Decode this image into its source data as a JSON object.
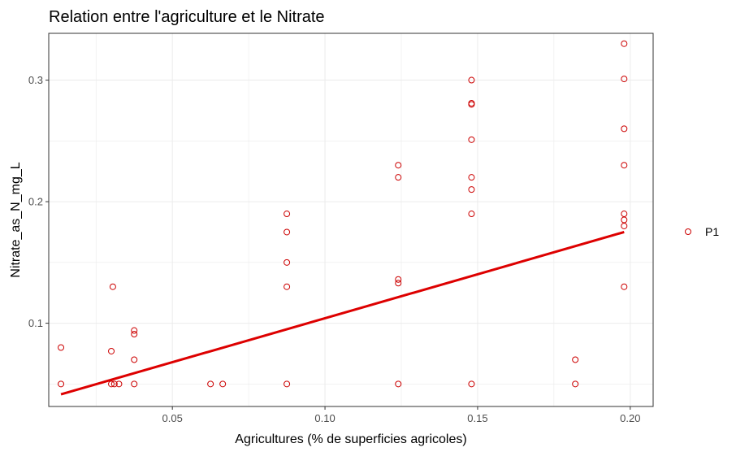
{
  "chart_data": {
    "type": "scatter",
    "title": "Relation entre l'agriculture et le Nitrate",
    "xlabel": "Agricultures (% de superficies agricoles)",
    "ylabel": "Nitrate_as_N_mg_L",
    "xlim": [
      0.0095,
      0.2075
    ],
    "ylim": [
      0.0315,
      0.3385
    ],
    "xticks": [
      0.05,
      0.1,
      0.15,
      0.2
    ],
    "xtick_labels": [
      "0.05",
      "0.10",
      "0.15",
      "0.20"
    ],
    "yticks": [
      0.1,
      0.2,
      0.3
    ],
    "ytick_labels": [
      "0.1",
      "0.2",
      "0.3"
    ],
    "grid": true,
    "legend": {
      "position": "right",
      "entries": [
        "P1"
      ]
    },
    "colors": {
      "points": "#cc0000",
      "trend": "#dd0000",
      "grid": "#ebebeb",
      "border": "#333333"
    },
    "series": [
      {
        "name": "P1",
        "points": [
          [
            0.0135,
            0.08
          ],
          [
            0.0135,
            0.05
          ],
          [
            0.03,
            0.077
          ],
          [
            0.0305,
            0.13
          ],
          [
            0.03,
            0.05
          ],
          [
            0.031,
            0.05
          ],
          [
            0.0325,
            0.05
          ],
          [
            0.0375,
            0.094
          ],
          [
            0.0375,
            0.091
          ],
          [
            0.0375,
            0.07
          ],
          [
            0.0375,
            0.05
          ],
          [
            0.0625,
            0.05
          ],
          [
            0.0665,
            0.05
          ],
          [
            0.0875,
            0.19
          ],
          [
            0.0875,
            0.175
          ],
          [
            0.0875,
            0.15
          ],
          [
            0.0875,
            0.13
          ],
          [
            0.0875,
            0.05
          ],
          [
            0.124,
            0.23
          ],
          [
            0.124,
            0.22
          ],
          [
            0.124,
            0.136
          ],
          [
            0.124,
            0.133
          ],
          [
            0.124,
            0.05
          ],
          [
            0.148,
            0.3
          ],
          [
            0.148,
            0.281
          ],
          [
            0.148,
            0.28
          ],
          [
            0.148,
            0.251
          ],
          [
            0.148,
            0.22
          ],
          [
            0.148,
            0.21
          ],
          [
            0.148,
            0.19
          ],
          [
            0.148,
            0.05
          ],
          [
            0.182,
            0.07
          ],
          [
            0.182,
            0.05
          ],
          [
            0.198,
            0.33
          ],
          [
            0.198,
            0.301
          ],
          [
            0.198,
            0.26
          ],
          [
            0.198,
            0.23
          ],
          [
            0.198,
            0.19
          ],
          [
            0.198,
            0.185
          ],
          [
            0.198,
            0.18
          ],
          [
            0.198,
            0.13
          ]
        ]
      }
    ],
    "trendline": {
      "x": [
        0.0135,
        0.198
      ],
      "y": [
        0.0415,
        0.175
      ]
    }
  }
}
